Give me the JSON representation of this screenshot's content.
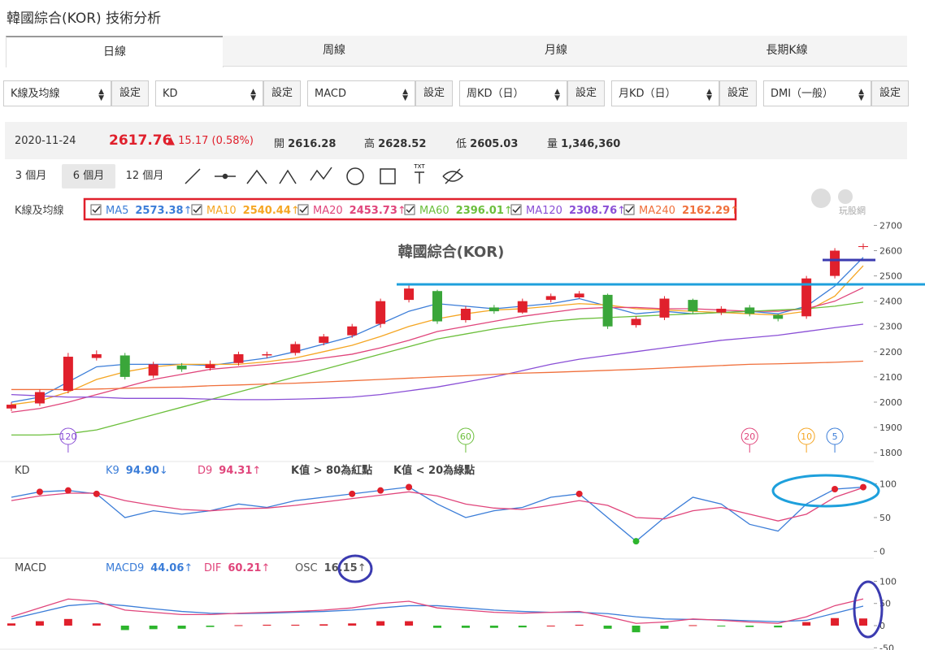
{
  "header": {
    "title": "韓國綜合(KOR) 技術分析"
  },
  "tabs": [
    "日線",
    "周線",
    "月線",
    "長期K線"
  ],
  "selectors": [
    {
      "label": "K線及均線",
      "button": "設定"
    },
    {
      "label": "KD",
      "button": "設定"
    },
    {
      "label": "MACD",
      "button": "設定"
    },
    {
      "label": "周KD（日）",
      "button": "設定"
    },
    {
      "label": "月KD（日）",
      "button": "設定"
    },
    {
      "label": "DMI（一般）",
      "button": "設定"
    }
  ],
  "quote": {
    "date": "2020-11-24",
    "price": 2617.76,
    "arrow": "▲",
    "change": 15.17,
    "change_pct": "(0.58%)",
    "open_label": "開",
    "open": 2616.28,
    "high_label": "高",
    "high": 2628.52,
    "low_label": "低",
    "low": 2605.03,
    "volume_label": "量",
    "volume": "1,346,360"
  },
  "periods": [
    "3 個月",
    "6 個月",
    "12 個月"
  ],
  "tools": {
    "txt": "TXT"
  },
  "logo": "玩股網",
  "chart_data": [
    {
      "type": "candlestick",
      "panel_label": "K線及均線",
      "title": "韓國綜合(KOR)",
      "up_color": "#e0202c",
      "down_color": "#3aa63a",
      "open": [
        1975,
        1995,
        2045,
        2175,
        2185,
        2105,
        2145,
        2135,
        2155,
        2185,
        2195,
        2235,
        2265,
        2310,
        2405,
        2440,
        2325,
        2375,
        2355,
        2405,
        2415,
        2425,
        2305,
        2335,
        2405,
        2355,
        2375,
        2345,
        2340,
        2500,
        2616.28
      ],
      "close": [
        1990,
        2040,
        2180,
        2190,
        2100,
        2150,
        2130,
        2150,
        2190,
        2190,
        2230,
        2260,
        2300,
        2400,
        2450,
        2320,
        2370,
        2360,
        2400,
        2420,
        2430,
        2300,
        2330,
        2410,
        2360,
        2370,
        2350,
        2330,
        2490,
        2600,
        2617.76
      ],
      "high": [
        2000,
        2050,
        2195,
        2205,
        2195,
        2160,
        2155,
        2165,
        2200,
        2200,
        2240,
        2270,
        2310,
        2410,
        2465,
        2445,
        2380,
        2385,
        2410,
        2430,
        2440,
        2430,
        2340,
        2420,
        2410,
        2380,
        2385,
        2350,
        2500,
        2610,
        2628.52
      ],
      "low": [
        1965,
        1985,
        2035,
        2165,
        2090,
        2095,
        2120,
        2125,
        2145,
        2175,
        2185,
        2225,
        2255,
        2295,
        2395,
        2310,
        2315,
        2350,
        2350,
        2395,
        2410,
        2290,
        2295,
        2325,
        2350,
        2345,
        2340,
        2320,
        2330,
        2490,
        2605.03
      ],
      "series": [
        {
          "name": "MA5",
          "color": "#3b7dd8",
          "trend": "↑",
          "values": [
            2000,
            2020,
            2080,
            2140,
            2150,
            2150,
            2150,
            2145,
            2160,
            2175,
            2200,
            2230,
            2260,
            2310,
            2360,
            2390,
            2380,
            2370,
            2380,
            2390,
            2410,
            2380,
            2350,
            2360,
            2350,
            2355,
            2360,
            2350,
            2380,
            2460,
            2573.38
          ]
        },
        {
          "name": "MA10",
          "color": "#f5a623",
          "trend": "↑",
          "values": [
            1990,
            2005,
            2040,
            2090,
            2120,
            2140,
            2150,
            2150,
            2150,
            2160,
            2175,
            2200,
            2225,
            2260,
            2300,
            2330,
            2350,
            2365,
            2370,
            2380,
            2390,
            2385,
            2370,
            2365,
            2360,
            2355,
            2350,
            2345,
            2360,
            2420,
            2540.44
          ]
        },
        {
          "name": "MA20",
          "color": "#e0457b",
          "trend": "↑",
          "values": [
            1960,
            1975,
            2000,
            2030,
            2060,
            2090,
            2110,
            2130,
            2140,
            2150,
            2160,
            2175,
            2190,
            2215,
            2245,
            2280,
            2300,
            2320,
            2340,
            2355,
            2370,
            2375,
            2375,
            2370,
            2370,
            2365,
            2360,
            2360,
            2370,
            2400,
            2453.73
          ]
        },
        {
          "name": "MA60",
          "color": "#6cbf3c",
          "trend": "↑",
          "values": [
            1870,
            1870,
            1875,
            1890,
            1920,
            1950,
            1980,
            2010,
            2040,
            2070,
            2100,
            2130,
            2160,
            2190,
            2220,
            2250,
            2270,
            2290,
            2305,
            2320,
            2330,
            2335,
            2340,
            2345,
            2350,
            2355,
            2360,
            2365,
            2370,
            2380,
            2396.01
          ]
        },
        {
          "name": "MA120",
          "color": "#8a4fd6",
          "trend": "↑",
          "values": [
            2030,
            2025,
            2020,
            2020,
            2015,
            2015,
            2015,
            2012,
            2010,
            2010,
            2012,
            2015,
            2020,
            2030,
            2045,
            2060,
            2080,
            2100,
            2125,
            2150,
            2170,
            2185,
            2200,
            2215,
            2230,
            2245,
            2255,
            2265,
            2280,
            2295,
            2308.76
          ]
        },
        {
          "name": "MA240",
          "color": "#f0703c",
          "trend": "↑",
          "values": [
            2050,
            2050,
            2050,
            2052,
            2055,
            2058,
            2060,
            2065,
            2068,
            2072,
            2075,
            2080,
            2085,
            2090,
            2095,
            2100,
            2105,
            2110,
            2115,
            2118,
            2122,
            2126,
            2130,
            2135,
            2140,
            2145,
            2150,
            2152,
            2155,
            2158,
            2162.29
          ]
        }
      ],
      "markers": [
        {
          "label": "120",
          "color": "#8a4fd6",
          "index": 2
        },
        {
          "label": "60",
          "color": "#6cbf3c",
          "index": 16
        },
        {
          "label": "20",
          "color": "#e0457b",
          "index": 26
        },
        {
          "label": "10",
          "color": "#f5a623",
          "index": 28
        },
        {
          "label": "5",
          "color": "#3b7dd8",
          "index": 29
        }
      ],
      "ylim": [
        1765,
        2740
      ],
      "yticks": [
        1800,
        1900,
        2000,
        2100,
        2200,
        2300,
        2400,
        2500,
        2600,
        2700
      ]
    },
    {
      "type": "line",
      "panel_label": "KD",
      "notes": [
        "K值 > 80為紅點",
        "K值 < 20為綠點"
      ],
      "red_dot_above": 80,
      "green_dot_below": 20,
      "dot_colors": [
        "#e0202c",
        "#2db52d"
      ],
      "series": [
        {
          "name": "K9",
          "color": "#3b7dd8",
          "trend": "↓",
          "last_label": "94.90",
          "values": [
            80,
            88,
            90,
            85,
            50,
            60,
            55,
            60,
            70,
            65,
            75,
            80,
            85,
            90,
            95,
            70,
            50,
            60,
            65,
            80,
            85,
            50,
            15,
            50,
            80,
            70,
            40,
            30,
            70,
            92,
            94.9
          ]
        },
        {
          "name": "D9",
          "color": "#e0457b",
          "trend": "↑",
          "values": [
            75,
            82,
            86,
            86,
            75,
            68,
            62,
            60,
            63,
            64,
            68,
            73,
            78,
            83,
            88,
            82,
            70,
            64,
            62,
            68,
            75,
            68,
            50,
            48,
            60,
            65,
            55,
            45,
            55,
            80,
            94.31
          ]
        }
      ],
      "ylim": [
        -10,
        110
      ],
      "yticks": [
        0,
        50,
        100
      ]
    },
    {
      "type": "line",
      "panel_label": "MACD",
      "series": [
        {
          "name": "MACD9",
          "color": "#3b7dd8",
          "trend": "↑",
          "values": [
            15,
            30,
            45,
            50,
            45,
            38,
            32,
            28,
            27,
            28,
            30,
            32,
            35,
            40,
            45,
            45,
            40,
            35,
            32,
            30,
            30,
            27,
            20,
            15,
            14,
            13,
            11,
            9,
            12,
            28,
            44.06
          ]
        },
        {
          "name": "DIF",
          "color": "#e0457b",
          "trend": "↑",
          "values": [
            20,
            40,
            60,
            55,
            35,
            30,
            25,
            25,
            28,
            30,
            32,
            35,
            40,
            50,
            55,
            40,
            35,
            30,
            28,
            30,
            32,
            20,
            5,
            8,
            15,
            12,
            8,
            5,
            20,
            45,
            60.21
          ]
        },
        {
          "name": "OSC",
          "type": "bar",
          "color": "#555555",
          "up_color": "#e0202c",
          "down_color": "#2db52d",
          "trend": "↑",
          "values": [
            5,
            10,
            15,
            5,
            -10,
            -8,
            -7,
            -3,
            1,
            2,
            2,
            3,
            5,
            10,
            10,
            -5,
            -5,
            -5,
            -4,
            0,
            2,
            -7,
            -15,
            -7,
            1,
            -1,
            -3,
            -4,
            8,
            17,
            16.15
          ]
        }
      ],
      "ylim": [
        -55,
        110
      ],
      "yticks": [
        -50,
        0,
        50,
        100
      ]
    }
  ]
}
